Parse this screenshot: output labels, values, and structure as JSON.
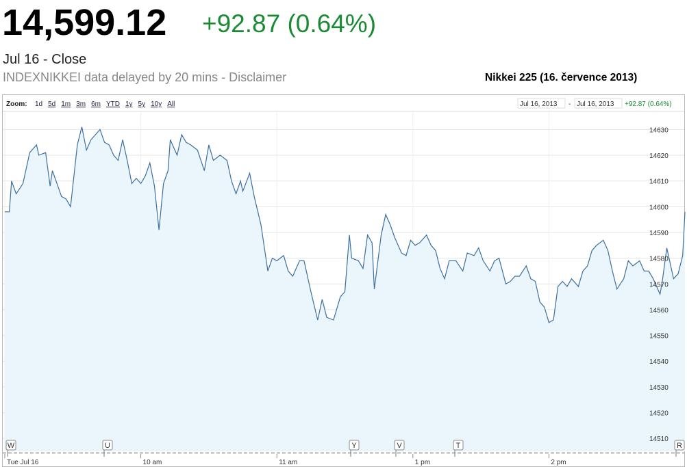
{
  "header": {
    "price": "14,599.12",
    "change": "+92.87 (0.64%)",
    "date": "Jul 16 - Close",
    "source": "INDEXNIKKEI data delayed by 20 mins - Disclaimer",
    "chart_title": "Nikkei 225 (16. července 2013)"
  },
  "zoom": {
    "label": "Zoom:",
    "options": [
      "1d",
      "5d",
      "1m",
      "3m",
      "6m",
      "YTD",
      "1y",
      "5y",
      "10y",
      "All"
    ],
    "range_start": "Jul 16, 2013",
    "separator": "-",
    "range_end": "Jul 16, 2013",
    "range_change": "+92.87 (0.64%)"
  },
  "flags": [
    "W",
    "U",
    "Y",
    "V",
    "T",
    "R"
  ],
  "chart_data": {
    "type": "line",
    "color": "#3d6f9e",
    "fill": "#eaf6fb",
    "grid": true,
    "xlim": [
      0,
      300
    ],
    "xticks": [
      {
        "value": 0,
        "label": "Tue Jul 16"
      },
      {
        "value": 60,
        "label": "10 am"
      },
      {
        "value": 120,
        "label": "11 am"
      },
      {
        "value": 180,
        "label": "1 pm"
      },
      {
        "value": 240,
        "label": "2 pm"
      }
    ],
    "ylim": [
      14505,
      14637
    ],
    "yticks": [
      14510,
      14520,
      14530,
      14540,
      14550,
      14560,
      14570,
      14580,
      14590,
      14600,
      14610,
      14620,
      14630
    ],
    "x": [
      0,
      2,
      3,
      5,
      8,
      11,
      14,
      15,
      18,
      20,
      21,
      25,
      27,
      29,
      32,
      34,
      36,
      38,
      40,
      42,
      44,
      46,
      48,
      50,
      52,
      54,
      56,
      58,
      60,
      62,
      64,
      66,
      68,
      70,
      72,
      73,
      76,
      78,
      80,
      82,
      85,
      88,
      90,
      92,
      95,
      98,
      100,
      102,
      104,
      105,
      108,
      110,
      113,
      116,
      118,
      120,
      123,
      125,
      127,
      130,
      132,
      135,
      138,
      140,
      142,
      145,
      148,
      150,
      152,
      153,
      156,
      158,
      160,
      162,
      163,
      166,
      168,
      170,
      172,
      175,
      177,
      179,
      181,
      183,
      186,
      188,
      190,
      192,
      194,
      196,
      199,
      202,
      204,
      207,
      209,
      211,
      214,
      216,
      218,
      221,
      223,
      225,
      227,
      230,
      232,
      234,
      236,
      238,
      240,
      242,
      244,
      246,
      248,
      250,
      253,
      255,
      257,
      259,
      261,
      264,
      266,
      268,
      270,
      273,
      275,
      277,
      280,
      282,
      284,
      286,
      289,
      290,
      292,
      295,
      297,
      299,
      300
    ],
    "values": [
      14598,
      14598,
      14610,
      14605,
      14609,
      14621,
      14624,
      14620,
      14621,
      14608,
      14614,
      14604,
      14603,
      14600,
      14624,
      14631,
      14622,
      14626,
      14628,
      14630,
      14625,
      14624,
      14620,
      14618,
      14626,
      14618,
      14609,
      14611,
      14609,
      14612,
      14617,
      14608,
      14591,
      14609,
      14614,
      14626,
      14620,
      14628,
      14625,
      14624,
      14622,
      14614,
      14624,
      14618,
      14620,
      14618,
      14610,
      14605,
      14610,
      14606,
      14613,
      14604,
      14593,
      14575,
      14580,
      14579,
      14581,
      14575,
      14573,
      14579,
      14579,
      14567,
      14556,
      14564,
      14557,
      14556,
      14565,
      14567,
      14589,
      14580,
      14579,
      14576,
      14589,
      14586,
      14568,
      14589,
      14597,
      14593,
      14588,
      14582,
      14581,
      14587,
      14585,
      14586,
      14589,
      14585,
      14583,
      14576,
      14572,
      14579,
      14579,
      14575,
      14582,
      14581,
      14584,
      14579,
      14575,
      14579,
      14580,
      14570,
      14571,
      14573,
      14573,
      14577,
      14572,
      14571,
      14563,
      14561,
      14555,
      14556,
      14569,
      14571,
      14569,
      14572,
      14569,
      14575,
      14577,
      14583,
      14585,
      14587,
      14583,
      14575,
      14568,
      14572,
      14579,
      14577,
      14579,
      14575,
      14575,
      14572,
      14566,
      14571,
      14584,
      14572,
      14574,
      14581,
      14598
    ]
  }
}
